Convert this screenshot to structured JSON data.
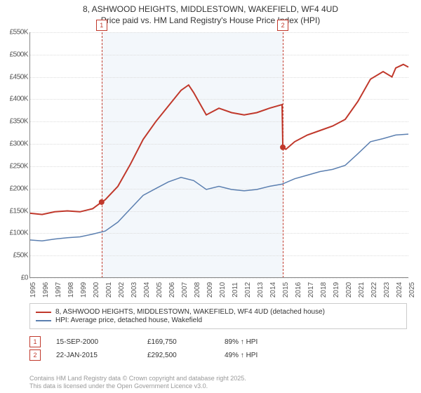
{
  "title_line1": "8, ASHWOOD HEIGHTS, MIDDLESTOWN, WAKEFIELD, WF4 4UD",
  "title_line2": "Price paid vs. HM Land Registry's House Price Index (HPI)",
  "chart": {
    "type": "line",
    "x_min": 1995,
    "x_max": 2025,
    "y_min": 0,
    "y_max": 550000,
    "y_ticks": [
      0,
      50000,
      100000,
      150000,
      200000,
      250000,
      300000,
      350000,
      400000,
      450000,
      500000,
      550000
    ],
    "y_tick_labels": [
      "£0",
      "£50K",
      "£100K",
      "£150K",
      "£200K",
      "£250K",
      "£300K",
      "£350K",
      "£400K",
      "£450K",
      "£500K",
      "£550K"
    ],
    "x_ticks": [
      1995,
      1996,
      1997,
      1998,
      1999,
      2000,
      2001,
      2002,
      2003,
      2004,
      2005,
      2006,
      2007,
      2008,
      2009,
      2010,
      2011,
      2012,
      2013,
      2014,
      2015,
      2016,
      2017,
      2018,
      2019,
      2020,
      2021,
      2022,
      2023,
      2024,
      2025
    ],
    "background_color": "#ffffff",
    "grid_color": "#dcdcdc",
    "shade_start": 2000.71,
    "shade_end": 2015.06,
    "shade_color": "#eef3f9",
    "series": {
      "property": {
        "color": "#c0382b",
        "width": 2,
        "label": "8, ASHWOOD HEIGHTS, MIDDLESTOWN, WAKEFIELD, WF4 4UD (detached house)",
        "points": [
          [
            1995,
            145000
          ],
          [
            1996,
            142000
          ],
          [
            1997,
            148000
          ],
          [
            1998,
            150000
          ],
          [
            1999,
            148000
          ],
          [
            2000,
            155000
          ],
          [
            2000.71,
            169750
          ],
          [
            2001,
            175000
          ],
          [
            2002,
            205000
          ],
          [
            2003,
            255000
          ],
          [
            2004,
            310000
          ],
          [
            2005,
            350000
          ],
          [
            2006,
            385000
          ],
          [
            2007,
            420000
          ],
          [
            2007.6,
            432000
          ],
          [
            2008,
            415000
          ],
          [
            2008.7,
            380000
          ],
          [
            2009,
            365000
          ],
          [
            2010,
            380000
          ],
          [
            2011,
            370000
          ],
          [
            2012,
            365000
          ],
          [
            2013,
            370000
          ],
          [
            2014,
            380000
          ],
          [
            2015,
            388000
          ],
          [
            2015.06,
            292500
          ],
          [
            2015.3,
            288000
          ],
          [
            2016,
            305000
          ],
          [
            2017,
            320000
          ],
          [
            2018,
            330000
          ],
          [
            2019,
            340000
          ],
          [
            2020,
            355000
          ],
          [
            2021,
            395000
          ],
          [
            2022,
            445000
          ],
          [
            2023,
            462000
          ],
          [
            2023.7,
            450000
          ],
          [
            2024,
            470000
          ],
          [
            2024.6,
            478000
          ],
          [
            2025,
            472000
          ]
        ]
      },
      "hpi": {
        "color": "#5b7fb0",
        "width": 1.5,
        "label": "HPI: Average price, detached house, Wakefield",
        "points": [
          [
            1995,
            85000
          ],
          [
            1996,
            83000
          ],
          [
            1997,
            87000
          ],
          [
            1998,
            90000
          ],
          [
            1999,
            92000
          ],
          [
            2000,
            98000
          ],
          [
            2001,
            105000
          ],
          [
            2002,
            125000
          ],
          [
            2003,
            155000
          ],
          [
            2004,
            185000
          ],
          [
            2005,
            200000
          ],
          [
            2006,
            215000
          ],
          [
            2007,
            225000
          ],
          [
            2008,
            218000
          ],
          [
            2009,
            198000
          ],
          [
            2010,
            205000
          ],
          [
            2011,
            198000
          ],
          [
            2012,
            195000
          ],
          [
            2013,
            198000
          ],
          [
            2014,
            205000
          ],
          [
            2015,
            210000
          ],
          [
            2016,
            222000
          ],
          [
            2017,
            230000
          ],
          [
            2018,
            238000
          ],
          [
            2019,
            243000
          ],
          [
            2020,
            252000
          ],
          [
            2021,
            278000
          ],
          [
            2022,
            305000
          ],
          [
            2023,
            312000
          ],
          [
            2024,
            320000
          ],
          [
            2025,
            322000
          ]
        ]
      }
    },
    "sale_markers": [
      {
        "n": "1",
        "x": 2000.71,
        "y": 169750
      },
      {
        "n": "2",
        "x": 2015.06,
        "y": 292500
      }
    ]
  },
  "datapoints": [
    {
      "n": "1",
      "date": "15-SEP-2000",
      "price": "£169,750",
      "hpi": "89% ↑ HPI"
    },
    {
      "n": "2",
      "date": "22-JAN-2015",
      "price": "£292,500",
      "hpi": "49% ↑ HPI"
    }
  ],
  "footer_line1": "Contains HM Land Registry data © Crown copyright and database right 2025.",
  "footer_line2": "This data is licensed under the Open Government Licence v3.0."
}
